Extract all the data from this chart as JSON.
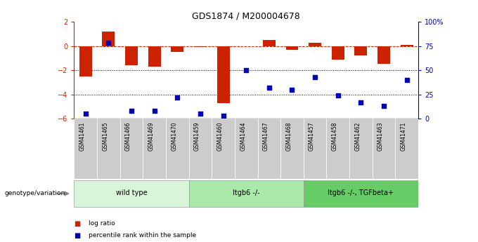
{
  "title": "GDS1874 / M200004678",
  "samples": [
    "GSM41461",
    "GSM41465",
    "GSM41466",
    "GSM41469",
    "GSM41470",
    "GSM41459",
    "GSM41460",
    "GSM41464",
    "GSM41467",
    "GSM41468",
    "GSM41457",
    "GSM41458",
    "GSM41462",
    "GSM41463",
    "GSM41471"
  ],
  "log_ratio": [
    -2.5,
    1.2,
    -1.6,
    -1.7,
    -0.5,
    -0.1,
    -4.7,
    -0.05,
    0.5,
    -0.3,
    0.25,
    -1.1,
    -0.8,
    -1.5,
    0.1
  ],
  "percentile_rank": [
    5,
    78,
    8,
    8,
    22,
    5,
    3,
    50,
    32,
    30,
    43,
    24,
    17,
    13,
    40
  ],
  "groups": [
    {
      "label": "wild type",
      "start": 0,
      "end": 5,
      "color": "#d9f5d9"
    },
    {
      "label": "Itgb6 -/-",
      "start": 5,
      "end": 10,
      "color": "#aae8aa"
    },
    {
      "label": "Itgb6 -/-, TGFbeta+",
      "start": 10,
      "end": 15,
      "color": "#66cc66"
    }
  ],
  "ylim": [
    -6,
    2
  ],
  "yticks_left": [
    -6,
    -4,
    -2,
    0,
    2
  ],
  "right_yticks_pct": [
    0,
    25,
    50,
    75,
    100
  ],
  "right_ylabels": [
    "0",
    "25",
    "50",
    "75",
    "100%"
  ],
  "hline_y": 0,
  "dotted_lines": [
    -2,
    -4
  ],
  "bar_color": "#cc2200",
  "dot_color": "#0000bb",
  "bar_width": 0.55,
  "dot_size": 20,
  "background_color": "#ffffff",
  "legend_items": [
    {
      "label": "log ratio",
      "color": "#cc2200"
    },
    {
      "label": "percentile rank within the sample",
      "color": "#0000bb"
    }
  ],
  "genotype_label": "genotype/variation"
}
